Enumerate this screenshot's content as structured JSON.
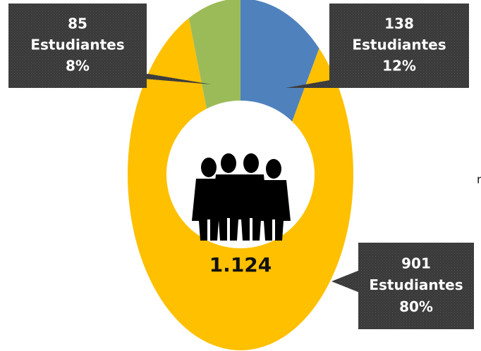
{
  "chart_data": {
    "type": "donut",
    "values": [
      138,
      901,
      85
    ],
    "colors": [
      "#4f81bd",
      "#ffc000",
      "#9bbb59"
    ],
    "unit_label": "Estudiantes",
    "percent_labels": [
      "12%",
      "80%",
      "8%"
    ],
    "total": {
      "value": 1124,
      "label": "1.124"
    },
    "side_text": "n"
  }
}
